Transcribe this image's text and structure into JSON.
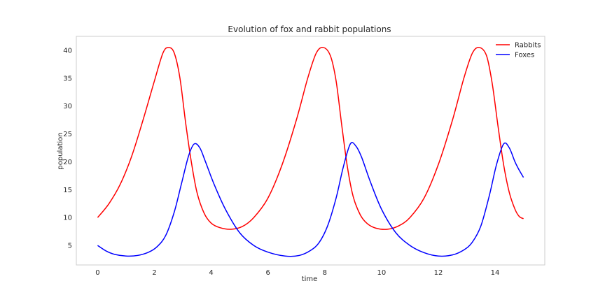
{
  "chart_data": {
    "type": "line",
    "title": "Evolution of fox and rabbit populations",
    "xlabel": "time",
    "ylabel": "population",
    "xlim": [
      -0.75,
      15.75
    ],
    "ylim": [
      1.5,
      42.5
    ],
    "xticks": [
      0,
      2,
      4,
      6,
      8,
      10,
      12,
      14
    ],
    "yticks": [
      5,
      10,
      15,
      20,
      25,
      30,
      35,
      40
    ],
    "grid": false,
    "legend_position": "top-right",
    "series": [
      {
        "name": "Rabbits",
        "color": "#ff0000",
        "points": [
          [
            0,
            10
          ],
          [
            0.4,
            12.5
          ],
          [
            0.8,
            16
          ],
          [
            1.2,
            21
          ],
          [
            1.6,
            27.5
          ],
          [
            2.0,
            34.5
          ],
          [
            2.3,
            39.5
          ],
          [
            2.5,
            40.5
          ],
          [
            2.7,
            39.5
          ],
          [
            2.9,
            35
          ],
          [
            3.1,
            27
          ],
          [
            3.3,
            20
          ],
          [
            3.5,
            14.5
          ],
          [
            3.75,
            10.8
          ],
          [
            4.0,
            9.0
          ],
          [
            4.3,
            8.2
          ],
          [
            4.7,
            7.9
          ],
          [
            5.1,
            8.4
          ],
          [
            5.5,
            10
          ],
          [
            6.0,
            13.5
          ],
          [
            6.5,
            19.5
          ],
          [
            7.0,
            27.5
          ],
          [
            7.4,
            35
          ],
          [
            7.7,
            39.5
          ],
          [
            7.95,
            40.5
          ],
          [
            8.2,
            39
          ],
          [
            8.4,
            34.5
          ],
          [
            8.6,
            26.5
          ],
          [
            8.8,
            19
          ],
          [
            9.0,
            13.8
          ],
          [
            9.25,
            10.5
          ],
          [
            9.5,
            8.9
          ],
          [
            9.8,
            8.1
          ],
          [
            10.2,
            7.9
          ],
          [
            10.6,
            8.5
          ],
          [
            11.0,
            10
          ],
          [
            11.5,
            13.5
          ],
          [
            12.0,
            19.5
          ],
          [
            12.5,
            27.5
          ],
          [
            12.9,
            35
          ],
          [
            13.2,
            39.5
          ],
          [
            13.45,
            40.5
          ],
          [
            13.7,
            39
          ],
          [
            13.9,
            34
          ],
          [
            14.1,
            26.5
          ],
          [
            14.3,
            19.5
          ],
          [
            14.5,
            14.5
          ],
          [
            14.7,
            11.5
          ],
          [
            14.85,
            10.2
          ],
          [
            15.0,
            9.8
          ]
        ]
      },
      {
        "name": "Foxes",
        "color": "#0000ff",
        "points": [
          [
            0,
            5
          ],
          [
            0.3,
            4
          ],
          [
            0.6,
            3.4
          ],
          [
            1.0,
            3.1
          ],
          [
            1.4,
            3.2
          ],
          [
            1.8,
            3.8
          ],
          [
            2.1,
            4.8
          ],
          [
            2.4,
            6.8
          ],
          [
            2.7,
            11
          ],
          [
            2.95,
            16
          ],
          [
            3.2,
            21
          ],
          [
            3.4,
            23.2
          ],
          [
            3.6,
            22.5
          ],
          [
            3.8,
            20
          ],
          [
            4.1,
            16
          ],
          [
            4.5,
            11.5
          ],
          [
            5.0,
            7.3
          ],
          [
            5.5,
            5.0
          ],
          [
            6.0,
            3.8
          ],
          [
            6.6,
            3.1
          ],
          [
            7.1,
            3.2
          ],
          [
            7.5,
            4.1
          ],
          [
            7.8,
            5.5
          ],
          [
            8.1,
            8.5
          ],
          [
            8.4,
            13.5
          ],
          [
            8.65,
            19
          ],
          [
            8.9,
            23.2
          ],
          [
            9.1,
            22.8
          ],
          [
            9.3,
            20.8
          ],
          [
            9.6,
            16.5
          ],
          [
            10.0,
            11.5
          ],
          [
            10.5,
            7.3
          ],
          [
            11.0,
            5.0
          ],
          [
            11.5,
            3.7
          ],
          [
            12.0,
            3.1
          ],
          [
            12.5,
            3.3
          ],
          [
            12.9,
            4.2
          ],
          [
            13.2,
            5.6
          ],
          [
            13.5,
            8.5
          ],
          [
            13.8,
            14
          ],
          [
            14.05,
            19.5
          ],
          [
            14.3,
            23.2
          ],
          [
            14.5,
            22.5
          ],
          [
            14.7,
            20
          ],
          [
            14.85,
            18.5
          ],
          [
            15.0,
            17.2
          ]
        ]
      }
    ]
  }
}
